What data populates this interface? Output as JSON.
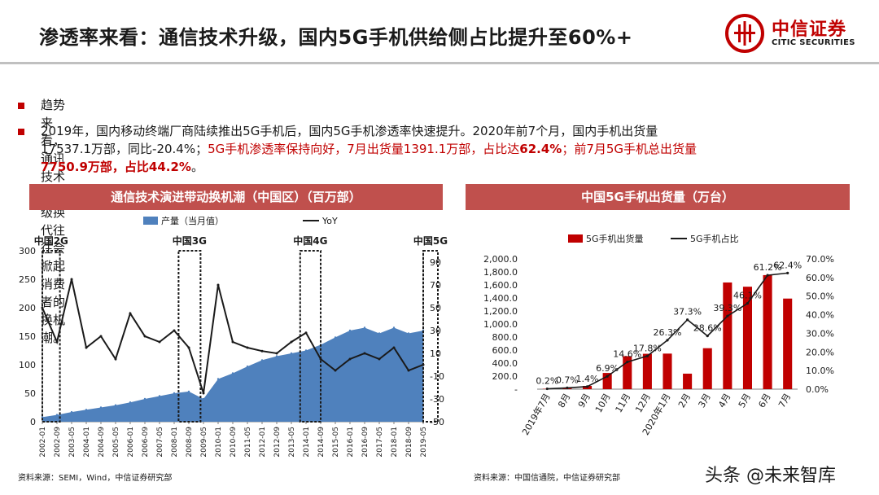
{
  "slide": {
    "title": "渗透率来看：通信技术升级，国内5G手机供给侧占比提升至60%+",
    "logo_cn": "中信证券",
    "logo_en": "CITIC SECURITIES",
    "bullet1": "趋势来看，通讯技术的升级换代往往会掀起消费者的换机潮。",
    "bullet2_line1": "2019年，国内移动终端厂商陆续推出5G手机后，国内5G手机渗透率快速提升。2020年前7个月，国内手机出货量",
    "bullet2_line2_black": "17537.1万部，同比-20.4%；",
    "bullet2_line2_red_a": "5G手机渗透率保持向好，7月出货量1391.1万部，占比达",
    "bullet2_line2_red_b": "62.4%",
    "bullet2_line2_red_c": "；前7月5G手机总出货量",
    "bullet2_line3_red": "7750.9万部，占比44.2%",
    "bullet2_line3_black": "。",
    "left_panel_title": "通信技术演进带动换机潮（中国区）（百万部）",
    "right_panel_title": "中国5G手机出货量（万台）",
    "left_source": "资料来源：SEMI，Wind，中信证券研究部",
    "right_source": "资料来源：中国信通院，中信证券研究部",
    "watermark": "头条 @未来智库",
    "colors": {
      "brand_red": "#c00000",
      "header_red": "#c0504d",
      "area_blue": "#4f81bd",
      "bar_red": "#c00000"
    }
  },
  "chart_data": [
    {
      "type": "area",
      "title": "通信技术演进带动换机潮（中国区）（百万部）",
      "legend": [
        "产量（当月值）",
        "YoY"
      ],
      "ylim_left": [
        0,
        300
      ],
      "left_ticks": [
        "0",
        "50",
        "100",
        "150",
        "200",
        "250",
        "300"
      ],
      "ylim_right": [
        -50,
        100
      ],
      "right_ticks": [
        "-50",
        "-30",
        "-10",
        "10",
        "30",
        "50",
        "70",
        "90"
      ],
      "x_ticks": [
        "2002-01",
        "2002-09",
        "2003-05",
        "2004-01",
        "2004-09",
        "2005-05",
        "2006-01",
        "2006-09",
        "2007-05",
        "2008-01",
        "2008-09",
        "2009-05",
        "2010-01",
        "2010-09",
        "2011-05",
        "2012-01",
        "2012-09",
        "2013-05",
        "2014-01",
        "2014-09",
        "2015-05",
        "2016-01",
        "2016-09",
        "2017-05",
        "2018-01",
        "2018-09",
        "2019-05"
      ],
      "annotations": [
        {
          "label": "中国2G",
          "x_start": 0.0,
          "x_end": 1.2
        },
        {
          "label": "中国3G",
          "x_start": 9.3,
          "x_end": 10.8
        },
        {
          "label": "中国4G",
          "x_start": 17.6,
          "x_end": 19.0
        },
        {
          "label": "中国5G",
          "x_start": 26.0,
          "x_end": 27.0
        }
      ],
      "series": [
        {
          "name": "产量（当月值）",
          "kind": "area",
          "color": "#4f81bd",
          "values": [
            8,
            12,
            17,
            21,
            25,
            29,
            34,
            40,
            45,
            50,
            53,
            40,
            75,
            85,
            97,
            108,
            115,
            120,
            125,
            135,
            148,
            160,
            165,
            155,
            165,
            155,
            160
          ]
        },
        {
          "name": "YoY",
          "kind": "line",
          "color": "#1a1a1a",
          "values": [
            50,
            20,
            75,
            15,
            25,
            5,
            45,
            25,
            20,
            30,
            15,
            -25,
            70,
            20,
            15,
            12,
            10,
            20,
            28,
            5,
            -5,
            5,
            10,
            5,
            15,
            -5,
            0
          ]
        }
      ]
    },
    {
      "type": "bar",
      "title": "中国5G手机出货量（万台）",
      "legend": [
        "5G手机出货量",
        "5G手机占比"
      ],
      "categories": [
        "2019年7月",
        "8月",
        "9月",
        "10月",
        "11月",
        "12月",
        "2020年1月",
        "2月",
        "3月",
        "4月",
        "5月",
        "6月",
        "7月"
      ],
      "ylim_left": [
        0,
        2000
      ],
      "left_ticks": [
        "-",
        "200.0",
        "400.0",
        "600.0",
        "800.0",
        "1,000.0",
        "1,200.0",
        "1,400.0",
        "1,600.0",
        "1,800.0",
        "2,000.0"
      ],
      "ylim_right": [
        0,
        70
      ],
      "right_ticks": [
        "0.0%",
        "10.0%",
        "20.0%",
        "30.0%",
        "40.0%",
        "50.0%",
        "60.0%",
        "70.0%"
      ],
      "series": [
        {
          "name": "5G手机出货量",
          "kind": "bar",
          "color": "#c00000",
          "values": [
            6,
            21,
            50,
            249,
            507,
            543,
            546,
            238,
            629,
            1638,
            1573,
            1751,
            1391
          ]
        },
        {
          "name": "5G手机占比",
          "kind": "line",
          "color": "#1a1a1a",
          "values": [
            0.2,
            0.7,
            1.4,
            6.9,
            14.6,
            17.8,
            26.3,
            37.3,
            28.6,
            39.3,
            46.1,
            61.2,
            62.4
          ],
          "labels": [
            "0.2%",
            "0.7%",
            "1.4%",
            "6.9%",
            "14.6%",
            "17.8%",
            "26.3%",
            "37.3%",
            "28.6%",
            "39.3%",
            "46.1%",
            "61.2%",
            "62.4%"
          ]
        }
      ]
    }
  ]
}
